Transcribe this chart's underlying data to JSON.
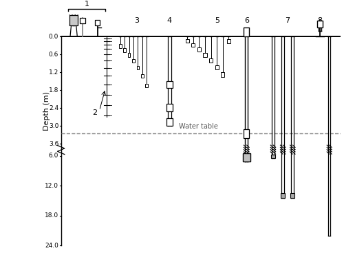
{
  "ylabel": "Depth (m)",
  "water_table_label": "Water table",
  "water_table_depth": 3.25,
  "yticks_real": [
    0.0,
    0.6,
    1.2,
    1.8,
    2.4,
    3.0,
    3.6,
    6.0,
    12.0,
    18.0,
    24.0
  ],
  "ytick_labels": [
    "0.0",
    "0.6",
    "1.2",
    "1.8",
    "2.4",
    "3.0",
    "3.6",
    "6.0",
    "12.0",
    "18.0",
    "24.0"
  ],
  "fig_width": 5.0,
  "fig_height": 3.71,
  "dpi": 100
}
